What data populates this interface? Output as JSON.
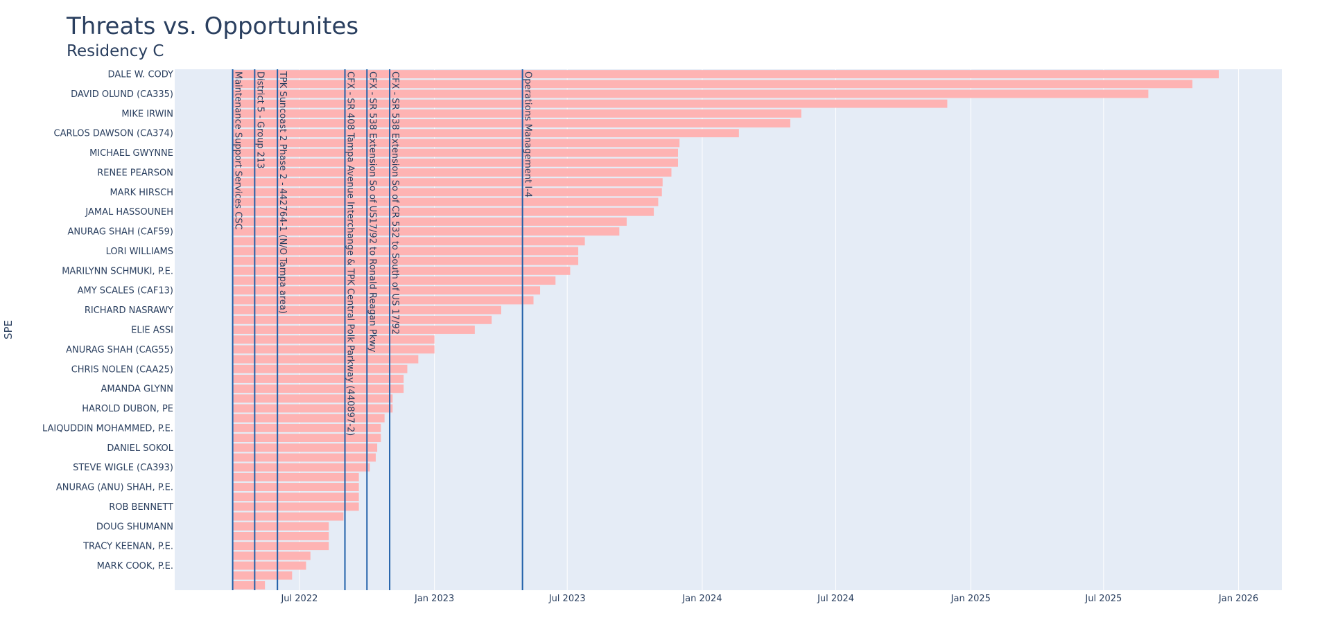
{
  "chart_data": {
    "type": "bar",
    "orientation": "horizontal",
    "title": "Threats vs. Opportunites",
    "subtitle": "Residency C",
    "xlabel": "",
    "ylabel": "SPE",
    "x_axis_type": "date",
    "x_range": [
      "2022-01-12",
      "2026-03-01"
    ],
    "bar_start": "2022-04-01",
    "x_ticks": [
      {
        "date": "2022-07-01",
        "label": "Jul 2022"
      },
      {
        "date": "2023-01-01",
        "label": "Jan 2023"
      },
      {
        "date": "2023-07-01",
        "label": "Jul 2023"
      },
      {
        "date": "2024-01-01",
        "label": "Jan 2024"
      },
      {
        "date": "2024-07-01",
        "label": "Jul 2024"
      },
      {
        "date": "2025-01-01",
        "label": "Jan 2025"
      },
      {
        "date": "2025-07-01",
        "label": "Jul 2025"
      },
      {
        "date": "2026-01-01",
        "label": "Jan 2026"
      }
    ],
    "y_tick_labels": [
      "DALE W. CODY",
      "DAVID OLUND (CA335)",
      "MIKE IRWIN",
      "CARLOS DAWSON (CA374)",
      "MICHAEL GWYNNE",
      "RENEE PEARSON",
      "MARK HIRSCH",
      "JAMAL HASSOUNEH",
      "ANURAG SHAH (CAF59)",
      "LORI WILLIAMS",
      "MARILYNN SCHMUKI, P.E.",
      "AMY SCALES (CAF13)",
      "RICHARD NASRAWY",
      "ELIE ASSI",
      "ANURAG SHAH (CAG55)",
      "CHRIS NOLEN (CAA25)",
      "AMANDA GLYNN",
      "HAROLD DUBON, PE",
      "LAIQUDDIN MOHAMMED, P.E.",
      "DANIEL SOKOL",
      "STEVE WIGLE (CA393)",
      "ANURAG (ANU) SHAH, P.E.",
      "ROB BENNETT",
      "DOUG SHUMANN",
      "TRACY KEENAN, P.E.",
      "MARK COOK, P.E."
    ],
    "bar_end_dates": [
      "2025-12-05",
      "2025-10-30",
      "2025-08-31",
      "2024-11-30",
      "2024-05-15",
      "2024-04-30",
      "2024-02-20",
      "2023-12-01",
      "2023-11-29",
      "2023-11-29",
      "2023-11-20",
      "2023-11-08",
      "2023-11-07",
      "2023-11-02",
      "2023-10-27",
      "2023-09-20",
      "2023-09-10",
      "2023-07-25",
      "2023-07-16",
      "2023-07-16",
      "2023-07-05",
      "2023-06-15",
      "2023-05-25",
      "2023-05-16",
      "2023-04-02",
      "2023-03-20",
      "2023-02-25",
      "2023-01-01",
      "2023-01-01",
      "2022-12-10",
      "2022-11-25",
      "2022-11-20",
      "2022-11-20",
      "2022-11-05",
      "2022-11-05",
      "2022-10-25",
      "2022-10-20",
      "2022-10-20",
      "2022-10-15",
      "2022-10-13",
      "2022-10-05",
      "2022-09-20",
      "2022-09-20",
      "2022-09-20",
      "2022-09-20",
      "2022-08-30",
      "2022-08-10",
      "2022-08-10",
      "2022-08-10",
      "2022-07-16",
      "2022-07-10",
      "2022-06-21",
      "2022-05-15"
    ],
    "vertical_lines": [
      {
        "date": "2022-04-01",
        "label": "Maintenance Support Services CSC"
      },
      {
        "date": "2022-05-01",
        "label": "District 5 - Group 213"
      },
      {
        "date": "2022-06-01",
        "label": "TPK Suncoast 2 Phase 2 - 442764-1 (N/O Tampa area)"
      },
      {
        "date": "2022-09-01",
        "label": "CFX - SR 408 Tampa Avenue Interchange & TPK Central Polk Parkway (440897-2)"
      },
      {
        "date": "2022-10-01",
        "label": "CFX - SR 538 Extension So of US17/92 to Ronald Reagan Pkwy"
      },
      {
        "date": "2022-11-01",
        "label": "CFX - SR 538 Extension So of CR 532 to South of US 17/92"
      },
      {
        "date": "2023-05-01",
        "label": "Operations Management I-4"
      }
    ],
    "colors": {
      "bar": "#feb3b3",
      "line": "#1f5fa8",
      "plot_bg": "#e5ecf6",
      "grid": "#ffffff",
      "text": "#2a3f5f"
    }
  }
}
